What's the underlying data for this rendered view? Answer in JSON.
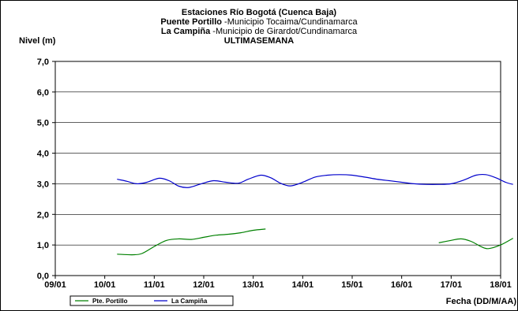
{
  "chart_data": {
    "type": "line",
    "title": "Estaciones Río Bogotá (Cuenca Baja)",
    "subtitle_lines": [
      {
        "bold": "Puente Portillo",
        "rest": " -Municipio Tocaima/Cundinamarca"
      },
      {
        "bold": "La Campiña",
        "rest": " -Municipio de Girardot/Cundinamarca"
      }
    ],
    "period": "ULTIMASEMANA",
    "ylabel": "Nivel (m)",
    "xlabel": "Fecha (DD/M/AA)",
    "ylim": [
      0,
      7
    ],
    "y_ticks": [
      "0,0",
      "1,0",
      "2,0",
      "3,0",
      "4,0",
      "5,0",
      "6,0",
      "7,0"
    ],
    "x_ticks": [
      "09/01",
      "10/01",
      "11/01",
      "12/01",
      "13/01",
      "14/01",
      "15/01",
      "16/01",
      "17/01",
      "18/01"
    ],
    "grid": "horizontal",
    "legend_position": "bottom",
    "series": [
      {
        "name": "Pte. Portillo",
        "color": "#008000",
        "segments": [
          [
            [
              1.25,
              0.7
            ],
            [
              1.55,
              0.68
            ],
            [
              1.75,
              0.72
            ],
            [
              2.0,
              0.95
            ],
            [
              2.25,
              1.15
            ],
            [
              2.5,
              1.2
            ],
            [
              2.75,
              1.18
            ],
            [
              3.0,
              1.25
            ],
            [
              3.25,
              1.32
            ],
            [
              3.5,
              1.35
            ],
            [
              3.75,
              1.4
            ],
            [
              4.0,
              1.48
            ],
            [
              4.25,
              1.52
            ]
          ],
          [
            [
              7.75,
              1.07
            ],
            [
              8.0,
              1.15
            ],
            [
              8.2,
              1.2
            ],
            [
              8.4,
              1.12
            ],
            [
              8.6,
              0.95
            ],
            [
              8.75,
              0.88
            ],
            [
              9.0,
              1.0
            ],
            [
              9.25,
              1.22
            ]
          ]
        ]
      },
      {
        "name": "La Campiña",
        "color": "#0000CC",
        "segments": [
          [
            [
              1.25,
              3.15
            ],
            [
              1.45,
              3.08
            ],
            [
              1.65,
              3.0
            ],
            [
              1.85,
              3.05
            ],
            [
              2.1,
              3.18
            ],
            [
              2.3,
              3.1
            ],
            [
              2.5,
              2.92
            ],
            [
              2.7,
              2.88
            ],
            [
              2.95,
              3.0
            ],
            [
              3.2,
              3.1
            ],
            [
              3.45,
              3.05
            ],
            [
              3.7,
              3.02
            ],
            [
              3.9,
              3.15
            ],
            [
              4.15,
              3.28
            ],
            [
              4.35,
              3.2
            ],
            [
              4.55,
              3.02
            ],
            [
              4.75,
              2.93
            ],
            [
              5.0,
              3.05
            ],
            [
              5.25,
              3.22
            ],
            [
              5.5,
              3.28
            ],
            [
              5.75,
              3.3
            ],
            [
              6.0,
              3.28
            ],
            [
              6.25,
              3.22
            ],
            [
              6.5,
              3.15
            ],
            [
              6.75,
              3.1
            ],
            [
              7.0,
              3.05
            ],
            [
              7.25,
              3.0
            ],
            [
              7.5,
              2.98
            ],
            [
              7.75,
              2.98
            ],
            [
              8.0,
              3.0
            ],
            [
              8.25,
              3.12
            ],
            [
              8.5,
              3.28
            ],
            [
              8.7,
              3.3
            ],
            [
              8.9,
              3.2
            ],
            [
              9.1,
              3.05
            ],
            [
              9.25,
              2.98
            ]
          ]
        ]
      }
    ]
  }
}
